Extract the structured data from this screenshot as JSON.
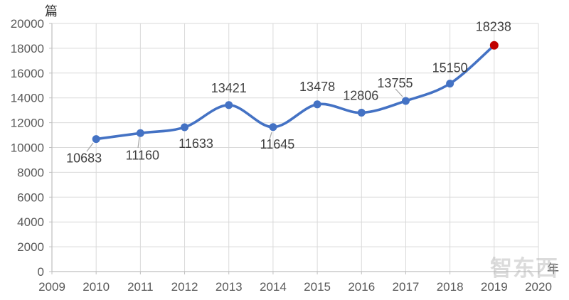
{
  "background": "#FFFFFF",
  "chart_data": {
    "type": "line",
    "title": "",
    "ylabel": "篇",
    "xlabel": "年",
    "categories": [
      "2010",
      "2011",
      "2012",
      "2013",
      "2014",
      "2015",
      "2016",
      "2017",
      "2018",
      "2019"
    ],
    "values": [
      10683,
      11160,
      11633,
      13421,
      11645,
      13478,
      12806,
      13755,
      15150,
      18238
    ],
    "data_labels": [
      "10683",
      "11160",
      "11633",
      "13421",
      "11645",
      "13478",
      "12806",
      "13755",
      "15150",
      "18238"
    ],
    "x_ticks": [
      "2009",
      "2010",
      "2011",
      "2012",
      "2013",
      "2014",
      "2015",
      "2016",
      "2017",
      "2018",
      "2019",
      "2020"
    ],
    "y_ticks": [
      0,
      2000,
      4000,
      6000,
      8000,
      10000,
      12000,
      14000,
      16000,
      18000,
      20000
    ],
    "xlim": [
      2009,
      2020
    ],
    "ylim": [
      0,
      20000
    ],
    "grid": true,
    "legend": "none",
    "smooth_line": true,
    "data_labels_visible": true,
    "highlight_last_point": true,
    "colors": {
      "line": "#4472C4",
      "marker": "#4472C4",
      "highlight_marker": "#C00000",
      "grid": "#D9D9D9",
      "axis": "#BFBFBF",
      "axis_text": "#595959",
      "data_label_text": "#404040",
      "leader_line": "#A6A6A6"
    }
  },
  "watermark": {
    "text": "智东西"
  }
}
